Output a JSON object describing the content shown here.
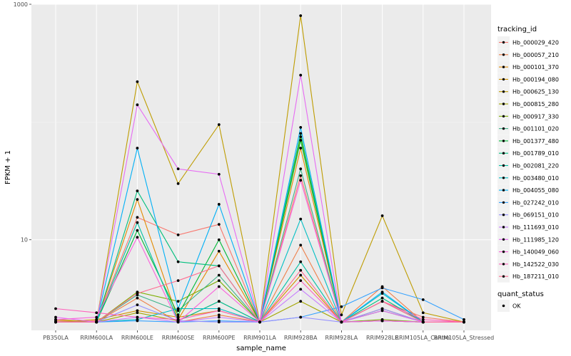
{
  "chart_data": {
    "type": "line",
    "scale_y": "log10",
    "xlabel": "sample_name",
    "ylabel": "FPKM + 1",
    "ylim": [
      1.7,
      1000
    ],
    "y_ticks": [
      {
        "value": 10,
        "label": "10"
      },
      {
        "value": 1000,
        "label": "1000"
      }
    ],
    "categories": [
      "PB350LA",
      "RRIM600LA",
      "RRIM600LE",
      "RRIM600SE",
      "RRIM600PE",
      "RRIM901LA",
      "RRIM928BA",
      "RRIM928LA",
      "RRIM928LE",
      "RRIM105LA_Control",
      "RRIM105LA_Stressed"
    ],
    "grid": true,
    "legend_position": "right",
    "legend": {
      "color_title": "tracking_id",
      "shape_title": "quant_status",
      "shape_entries": [
        "OK"
      ]
    },
    "series": [
      {
        "name": "Hb_000029_420",
        "color": "#F8766D",
        "values": [
          2.0,
          2.05,
          15.5,
          11.0,
          13.5,
          2.0,
          35.0,
          2.0,
          3.0,
          2.2,
          2.0
        ]
      },
      {
        "name": "Hb_000057_210",
        "color": "#EF7F49",
        "values": [
          2.05,
          2.0,
          3.2,
          2.0,
          2.3,
          2.0,
          9.0,
          2.0,
          4.0,
          2.0,
          2.0
        ]
      },
      {
        "name": "Hb_000101_370",
        "color": "#E38900",
        "values": [
          2.0,
          2.0,
          22.0,
          2.1,
          8.0,
          2.0,
          60.0,
          2.0,
          2.05,
          2.0,
          2.0
        ]
      },
      {
        "name": "Hb_000194_080",
        "color": "#D39200",
        "values": [
          2.0,
          2.1,
          2.5,
          2.2,
          2.5,
          2.0,
          5.0,
          2.0,
          2.6,
          2.0,
          2.0
        ]
      },
      {
        "name": "Hb_000625_130",
        "color": "#BE9C00",
        "values": [
          2.1,
          2.0,
          220.0,
          30.0,
          95.0,
          2.0,
          800.0,
          2.3,
          16.0,
          2.4,
          2.0
        ]
      },
      {
        "name": "Hb_000815_280",
        "color": "#A3A500",
        "values": [
          2.0,
          2.0,
          2.4,
          2.05,
          3.0,
          2.0,
          3.0,
          2.0,
          2.05,
          2.0,
          2.0
        ]
      },
      {
        "name": "Hb_000917_330",
        "color": "#7CAE00",
        "values": [
          2.0,
          2.0,
          3.6,
          3.0,
          4.5,
          2.0,
          75.0,
          2.0,
          2.1,
          2.0,
          2.0
        ]
      },
      {
        "name": "Hb_001101_020",
        "color": "#3EB489",
        "values": [
          2.0,
          2.0,
          3.4,
          2.5,
          5.0,
          2.0,
          40.0,
          2.0,
          3.0,
          2.0,
          2.0
        ]
      },
      {
        "name": "Hb_001377_480",
        "color": "#00BA38",
        "values": [
          2.0,
          2.0,
          12.0,
          2.3,
          10.0,
          2.0,
          70.0,
          2.0,
          2.5,
          2.0,
          2.0
        ]
      },
      {
        "name": "Hb_001789_010",
        "color": "#00BF7D",
        "values": [
          2.0,
          2.0,
          26.0,
          6.5,
          6.0,
          2.0,
          80.0,
          2.0,
          3.2,
          2.0,
          2.0
        ]
      },
      {
        "name": "Hb_002081_220",
        "color": "#00C1A3",
        "values": [
          2.0,
          2.0,
          14.0,
          2.05,
          3.0,
          2.0,
          6.5,
          2.0,
          2.05,
          2.0,
          2.0
        ]
      },
      {
        "name": "Hb_003480_010",
        "color": "#00BFC4",
        "values": [
          2.0,
          2.0,
          2.1,
          2.6,
          2.6,
          2.0,
          15.0,
          2.0,
          3.5,
          2.0,
          2.0
        ]
      },
      {
        "name": "Hb_004055_080",
        "color": "#00B0F6",
        "values": [
          2.0,
          2.0,
          60.0,
          2.6,
          20.0,
          2.0,
          90.0,
          2.0,
          3.6,
          2.0,
          2.0
        ]
      },
      {
        "name": "Hb_027242_010",
        "color": "#35A2FF",
        "values": [
          2.0,
          2.0,
          2.05,
          2.0,
          2.05,
          2.0,
          2.2,
          2.7,
          3.9,
          3.1,
          2.1
        ]
      },
      {
        "name": "Hb_069151_010",
        "color": "#9590FF",
        "values": [
          2.0,
          2.0,
          2.8,
          2.05,
          2.0,
          2.0,
          2.2,
          2.0,
          2.6,
          2.0,
          2.0
        ]
      },
      {
        "name": "Hb_111693_010",
        "color": "#C77CFF",
        "values": [
          2.0,
          2.0,
          2.2,
          2.0,
          2.2,
          2.0,
          3.8,
          2.0,
          2.05,
          2.0,
          2.0
        ]
      },
      {
        "name": "Hb_111985_120",
        "color": "#E76BF3",
        "values": [
          2.2,
          2.0,
          140.0,
          40.0,
          36.0,
          2.0,
          250.0,
          2.0,
          2.5,
          2.0,
          2.0
        ]
      },
      {
        "name": "Hb_140049_060",
        "color": "#FA62DB",
        "values": [
          2.1,
          2.2,
          10.5,
          2.0,
          4.0,
          2.0,
          32.0,
          2.0,
          2.05,
          2.0,
          2.0
        ]
      },
      {
        "name": "Hb_142522_030",
        "color": "#FF62BC",
        "values": [
          2.6,
          2.4,
          2.2,
          2.1,
          2.5,
          2.0,
          4.5,
          2.0,
          3.0,
          2.1,
          2.0
        ]
      },
      {
        "name": "Hb_187211_010",
        "color": "#FF6C91",
        "values": [
          2.0,
          2.0,
          3.5,
          4.5,
          6.0,
          2.0,
          5.5,
          2.0,
          3.0,
          2.0,
          2.0
        ]
      }
    ]
  }
}
